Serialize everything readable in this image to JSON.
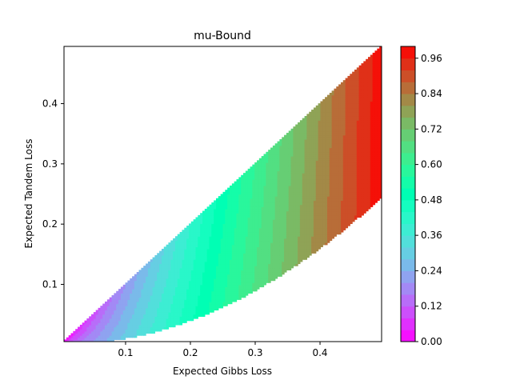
{
  "chart_data": {
    "type": "heatmap",
    "title": "mu-Bound",
    "xlabel": "Expected Gibbs Loss",
    "ylabel": "Expected Tandem Loss",
    "xlim": [
      0.005,
      0.495
    ],
    "ylim": [
      0.005,
      0.495
    ],
    "xticks": [
      0.1,
      0.2,
      0.3,
      0.4
    ],
    "xtick_labels": [
      "0.1",
      "0.2",
      "0.3",
      "0.4"
    ],
    "yticks": [
      0.1,
      0.2,
      0.3,
      0.4
    ],
    "ytick_labels": [
      "0.1",
      "0.2",
      "0.3",
      "0.4"
    ],
    "domain": "x^2 <= y <= x",
    "colormap": "rainbow",
    "grid": false,
    "colorbar": {
      "range": [
        0,
        1
      ],
      "ticks": [
        0.0,
        0.12,
        0.24,
        0.36,
        0.48,
        0.6,
        0.72,
        0.84,
        0.96
      ],
      "tick_labels": [
        "0.00",
        "0.12",
        "0.24",
        "0.36",
        "0.48",
        "0.60",
        "0.72",
        "0.84",
        "0.96"
      ],
      "levels": 25
    }
  }
}
